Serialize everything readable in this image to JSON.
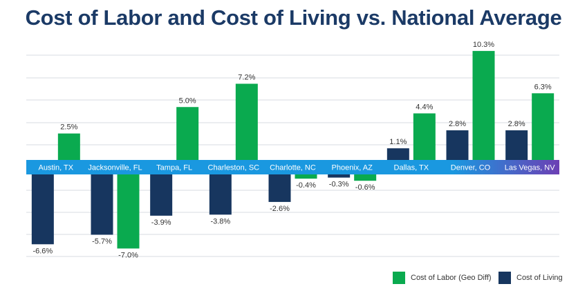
{
  "title": "Cost of Labor and Cost of Living vs. National Average",
  "colors": {
    "labor": "#0aaa4f",
    "living": "#17365f",
    "band_start": "#1a98e0",
    "band_end": "#6c3fb4",
    "grid": "#d7dbe0",
    "text": "#333333"
  },
  "legend": {
    "labor": "Cost of Labor (Geo Diff)",
    "living": "Cost of Living"
  },
  "chart_data": {
    "type": "bar",
    "title": "Cost of Labor and Cost of Living vs. National Average",
    "categories": [
      "Austin, TX",
      "Jacksonville, FL",
      "Tampa, FL",
      "Charleston, SC",
      "Charlotte, NC",
      "Phoenix, AZ",
      "Dallas, TX",
      "Denver, CO",
      "Las Vegas, NV"
    ],
    "series": [
      {
        "name": "Cost of Living",
        "key": "living",
        "values": [
          -6.6,
          -5.7,
          -3.9,
          -3.8,
          -2.6,
          -0.3,
          1.1,
          2.8,
          2.8
        ],
        "labels": [
          "-6.6%",
          "-5.7%",
          "-3.9%",
          "-3.8%",
          "-2.6%",
          "-0.3%",
          "1.1%",
          "2.8%",
          "2.8%"
        ]
      },
      {
        "name": "Cost of Labor (Geo Diff)",
        "key": "labor",
        "values": [
          2.5,
          -7.0,
          5.0,
          7.2,
          -0.4,
          -0.6,
          4.4,
          10.3,
          6.3
        ],
        "labels": [
          "2.5%",
          "-7.0%",
          "5.0%",
          "7.2%",
          "-0.4%",
          "-0.6%",
          "4.4%",
          "10.3%",
          "6.3%"
        ]
      }
    ],
    "ylim": [
      -8.5,
      12.3
    ],
    "grid": true,
    "legend_position": "bottom-right"
  }
}
